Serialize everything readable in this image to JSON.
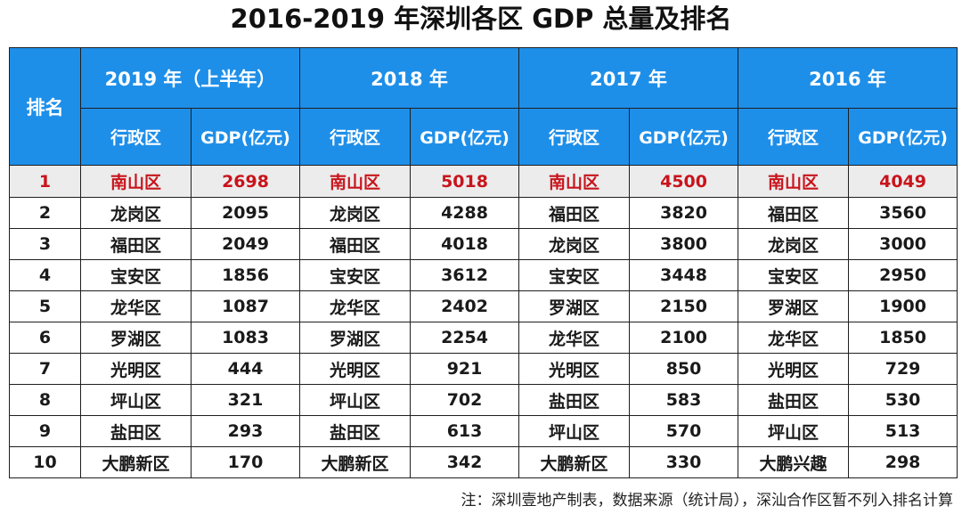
{
  "title": "2016-2019 年深圳各区 GDP 总量及排名",
  "header": {
    "rank": "排名",
    "years": [
      "2019 年（上半年）",
      "2018 年",
      "2017 年",
      "2016 年"
    ],
    "district": "行政区",
    "gdp": "GDP(亿元)"
  },
  "rows": [
    {
      "rank": "1",
      "cells": [
        [
          "南山区",
          "2698"
        ],
        [
          "南山区",
          "5018"
        ],
        [
          "南山区",
          "4500"
        ],
        [
          "南山区",
          "4049"
        ]
      ]
    },
    {
      "rank": "2",
      "cells": [
        [
          "龙岗区",
          "2095"
        ],
        [
          "龙岗区",
          "4288"
        ],
        [
          "福田区",
          "3820"
        ],
        [
          "福田区",
          "3560"
        ]
      ]
    },
    {
      "rank": "3",
      "cells": [
        [
          "福田区",
          "2049"
        ],
        [
          "福田区",
          "4018"
        ],
        [
          "龙岗区",
          "3800"
        ],
        [
          "龙岗区",
          "3000"
        ]
      ]
    },
    {
      "rank": "4",
      "cells": [
        [
          "宝安区",
          "1856"
        ],
        [
          "宝安区",
          "3612"
        ],
        [
          "宝安区",
          "3448"
        ],
        [
          "宝安区",
          "2950"
        ]
      ]
    },
    {
      "rank": "5",
      "cells": [
        [
          "龙华区",
          "1087"
        ],
        [
          "龙华区",
          "2402"
        ],
        [
          "罗湖区",
          "2150"
        ],
        [
          "罗湖区",
          "1900"
        ]
      ]
    },
    {
      "rank": "6",
      "cells": [
        [
          "罗湖区",
          "1083"
        ],
        [
          "罗湖区",
          "2254"
        ],
        [
          "龙华区",
          "2100"
        ],
        [
          "龙华区",
          "1850"
        ]
      ]
    },
    {
      "rank": "7",
      "cells": [
        [
          "光明区",
          "444"
        ],
        [
          "光明区",
          "921"
        ],
        [
          "光明区",
          "850"
        ],
        [
          "光明区",
          "729"
        ]
      ]
    },
    {
      "rank": "8",
      "cells": [
        [
          "坪山区",
          "321"
        ],
        [
          "坪山区",
          "702"
        ],
        [
          "盐田区",
          "583"
        ],
        [
          "盐田区",
          "530"
        ]
      ]
    },
    {
      "rank": "9",
      "cells": [
        [
          "盐田区",
          "293"
        ],
        [
          "盐田区",
          "613"
        ],
        [
          "坪山区",
          "570"
        ],
        [
          "坪山区",
          "513"
        ]
      ]
    },
    {
      "rank": "10",
      "cells": [
        [
          "大鹏新区",
          "170"
        ],
        [
          "大鹏新区",
          "342"
        ],
        [
          "大鹏新区",
          "330"
        ],
        [
          "大鹏兴趣",
          "298"
        ]
      ]
    }
  ],
  "note": "注：深圳壹地产制表，数据来源（统计局），深汕合作区暂不列入排名计算",
  "colors": {
    "header_bg": "#1e8fe9",
    "top_rank_text": "#c8141c",
    "top_rank_bg": "#ececec"
  }
}
